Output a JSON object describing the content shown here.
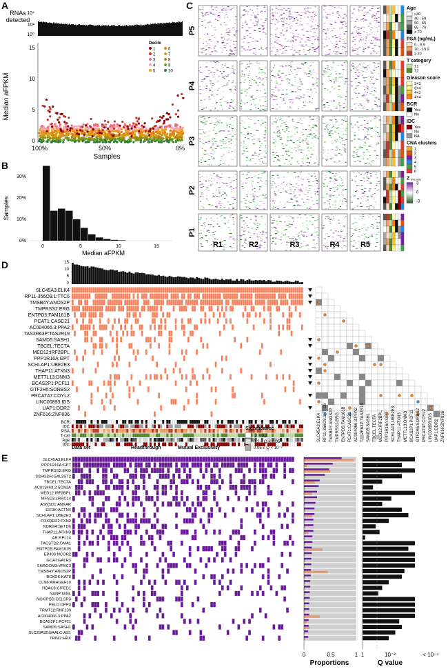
{
  "panels": {
    "A": "A",
    "B": "B",
    "C": "C",
    "D": "D",
    "E": "E"
  },
  "panelA": {
    "top_ylabel_line1": "RNAs",
    "top_ylabel_line2": "detected",
    "top_yticks": [
      "10⁴",
      "10²",
      "10⁰"
    ],
    "ylabel": "Median aFPKM",
    "xlabel": "Samples",
    "xticks": [
      "100%",
      "50%",
      "0%"
    ],
    "yticks": [
      "0",
      "5",
      "10",
      "15"
    ],
    "legend_title": "Decile",
    "legend": [
      {
        "label": "1",
        "color": "#8b0000"
      },
      {
        "label": "2",
        "color": "#c0392b"
      },
      {
        "label": "3",
        "color": "#e8707a"
      },
      {
        "label": "4",
        "color": "#f5a6b8"
      },
      {
        "label": "5",
        "color": "#f39c12"
      },
      {
        "label": "6",
        "color": "#e08214"
      },
      {
        "label": "7",
        "color": "#d4a017"
      },
      {
        "label": "8",
        "color": "#b8860b"
      },
      {
        "label": "9",
        "color": "#6a9a1f"
      },
      {
        "label": "10",
        "color": "#2e7d32"
      }
    ]
  },
  "chart_data": [
    {
      "type": "bar",
      "panel": "B",
      "xlabel": "Median aFPKM",
      "ylabel": "Samples",
      "x_bins": [
        0.5,
        1.5,
        2.5,
        3.5,
        4.5,
        5.5,
        6.5,
        7.5,
        8.5,
        9.5,
        10.5
      ],
      "values": [
        35,
        14,
        15,
        14,
        10,
        6,
        3,
        1.5,
        0.8,
        0.4,
        0.2
      ],
      "xticks": [
        "0",
        "5",
        "10",
        "15"
      ],
      "yticks": [
        "0%",
        "10%",
        "20%",
        "30%"
      ],
      "xlim": [
        -1,
        17
      ],
      "ylim": [
        0,
        36
      ]
    },
    {
      "type": "scatter",
      "panel": "A",
      "xlabel": "Samples",
      "ylabel": "Median aFPKM",
      "ylim": [
        0,
        16
      ]
    }
  ],
  "panelC": {
    "rows": [
      "P5",
      "P4",
      "P3",
      "P2",
      "P1"
    ],
    "cols": [
      "R1",
      "R2",
      "R3",
      "R4",
      "R5"
    ],
    "legend": {
      "age": {
        "title": "Age",
        "items": [
          "<40",
          "40 - 50",
          "50 - 65",
          "65 - 70",
          "≥ 70"
        ],
        "colors": [
          "#ffffff",
          "#d9d9d9",
          "#a6a6a6",
          "#595959",
          "#111111"
        ]
      },
      "psa": {
        "title": "PSA (ng/mL)",
        "items": [
          "0 - 9.9",
          "10 - 19.9",
          "≥ 20"
        ],
        "colors": [
          "#fde0c5",
          "#f4a460",
          "#c0392b"
        ]
      },
      "tcat": {
        "title": "T category",
        "items": [
          "T1",
          "T2"
        ],
        "colors": [
          "#c5e1a5",
          "#558b2f"
        ]
      },
      "gleason": {
        "title": "Gleason score",
        "items": [
          "3+3",
          "3+4",
          "4+3",
          "4+4"
        ],
        "colors": [
          "#fff9c4",
          "#fff176",
          "#fbc02d",
          "#f57f17"
        ]
      },
      "bcr": {
        "title": "BCR",
        "items": [
          "Yes",
          "No"
        ],
        "colors": [
          "#111111",
          "#ffffff"
        ]
      },
      "idc": {
        "title": "IDC",
        "items": [
          "Yes",
          "No",
          "NA"
        ],
        "colors": [
          "#8b0000",
          "#ffffff",
          "#9e9e9e"
        ]
      },
      "cna": {
        "title": "CNA clusters",
        "items": [
          "1",
          "2",
          "3",
          "4",
          "5",
          "6"
        ],
        "colors": [
          "#f9a825",
          "#e65100",
          "#7b1fa2",
          "#1e88e5",
          "#43a047",
          "#e53935"
        ]
      },
      "z": {
        "title": "Z",
        "subscript": "Intensity",
        "ticks": [
          "3",
          "0",
          "-3"
        ]
      }
    }
  },
  "panelD": {
    "top_yticks": [
      "15",
      "10",
      "5",
      "0"
    ],
    "genes": [
      "SLC45A3:ELK4",
      "RP11-356O9.1:TTC6",
      "TMSB4Y:ANOS2P",
      "TMPRSS2:ERG",
      "ENTPD5:FAM161B",
      "PCAT1:CASC21",
      "AC004066.3:PPA2",
      "TAS2R63P:TAS2R19",
      "SAMD5:SASH1",
      "TBCEL:TECTA",
      "MED12:IRF2BPL",
      "PPP1R16A:GPT",
      "SCHLAP1:UBE2E3",
      "THAP11:ATXN3",
      "METTL13:DNM3",
      "BCAS2P1:PCF11",
      "GTF2H5:SORBS2",
      "PRCAT47:COYL2",
      "LINC00893:IDS",
      "UAP1:DDR2",
      "ZNF616:ZNF836"
    ],
    "clin_labels": [
      "BCR",
      "IDC",
      "PSA",
      "T-cat",
      "Age",
      "IDC"
    ],
    "legend": {
      "dataset_title": "Data set",
      "localized": "Localized",
      "su2c": "SU2C - mCRPC",
      "readthrough_title": "Readthrough",
      "readthrough_yes": "Yes",
      "mutex_title": "Mutual Exclusivity",
      "cooccur": "Co-occuring",
      "mutex": "Mutually exclusive",
      "sig_title": "Significance",
      "sig_items": [
        "Q > 0.2",
        "0.2 ≤ Q < 0.05",
        "0.05 ≤ Q < 10⁻²",
        "10⁻² ≤ Q < 10⁻³",
        "Q ≤ 10⁻³"
      ]
    },
    "colors": {
      "localized": "#f4845f",
      "su2c": "#6a1b9a",
      "cooccur": "#e6862e",
      "mutex": "#4a90d9"
    }
  },
  "panelE": {
    "genes": [
      "SLC45A3:ELK4",
      "PPP1R16A:GPT",
      "TMPRSS2:ERG",
      "D2HGDH:GAL3ST2",
      "TBCEL:TECTA",
      "AC013463.2:SCN2A",
      "MED12:IRF2BPL",
      "MFSD3:LRRC14",
      "ASNSD1:ANKAR",
      "EIF3K:ACTN4",
      "SCHLAP1:UBE2E3",
      "FOXRED2:TXN2",
      "NDRG4:SETD6",
      "THAP11:ATXN3",
      "AR:RPL14",
      "TACSTD2:OMA1",
      "ENTPD5:FAM161B",
      "EP400:NCOR2",
      "GCAT:GALR3",
      "SHROOM3:WWC3",
      "TMSB4Y:ANOS2P",
      "BCKDK:KAT8",
      "CLN6:ARHGEF10",
      "HDAC8:CITED1",
      "NANP:NINL",
      "NCKIPSD:CELSR3",
      "PELO:DPP3",
      "TRMT12:RNF139",
      "AC004066.3:PPA2",
      "BCAS2P1:PCF11",
      "SAMD5:SASH1",
      "SLC25A32:BAALC-AS1",
      "TRIM2:HPX"
    ],
    "proportion_xlabel": "Proportions",
    "proportion_ticks": [
      "0",
      "0.5",
      "1"
    ],
    "qvalue_xlabel": "Q value",
    "qvalue_ticks": [
      "1",
      "10⁻²",
      "< 10⁻⁴"
    ],
    "colors": {
      "su2c": "#6a1b9a",
      "localized": "#e8a07a",
      "grey": "#cfcfcf"
    }
  }
}
